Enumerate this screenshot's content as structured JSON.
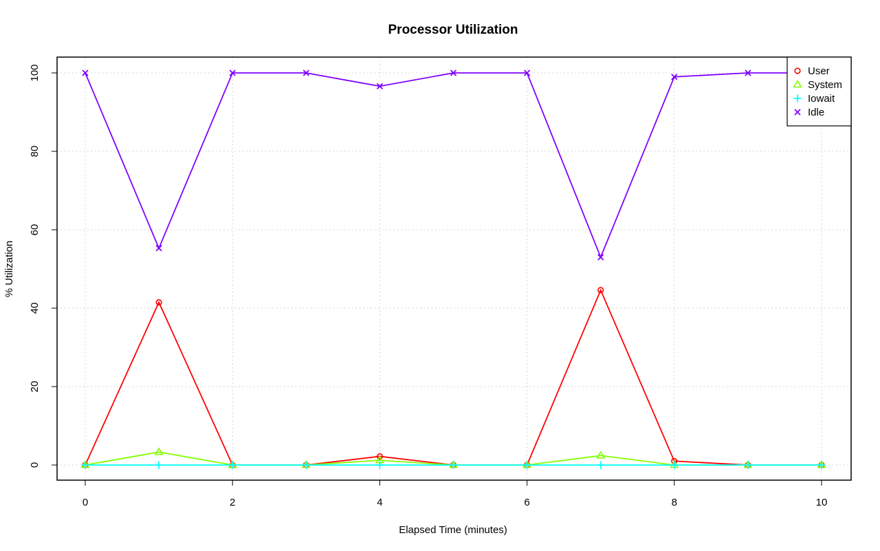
{
  "chart_data": {
    "type": "line",
    "title": "Processor Utilization",
    "xlabel": "Elapsed Time (minutes)",
    "ylabel": "% Utilization",
    "xlim": [
      0,
      10
    ],
    "ylim": [
      0,
      100
    ],
    "x_ticks": [
      0,
      2,
      4,
      6,
      8,
      10
    ],
    "y_ticks": [
      0,
      20,
      40,
      60,
      80,
      100
    ],
    "grid": true,
    "legend_position": "top-right",
    "x": [
      0,
      1,
      2,
      3,
      4,
      5,
      6,
      7,
      8,
      9,
      10
    ],
    "series": [
      {
        "name": "User",
        "color": "#ff0000",
        "marker": "circle",
        "values": [
          0,
          41.5,
          0,
          0,
          2.2,
          0,
          0,
          44.6,
          1.0,
          0,
          0
        ]
      },
      {
        "name": "System",
        "color": "#80ff00",
        "marker": "triangle",
        "values": [
          0,
          3.3,
          0,
          0,
          1.2,
          0,
          0,
          2.4,
          0,
          0,
          0
        ]
      },
      {
        "name": "Iowait",
        "color": "#00ffff",
        "marker": "plus",
        "values": [
          0,
          0,
          0,
          0,
          0,
          0,
          0,
          0,
          0,
          0,
          0
        ]
      },
      {
        "name": "Idle",
        "color": "#8000ff",
        "marker": "cross",
        "values": [
          100,
          55.3,
          100,
          100,
          96.6,
          100,
          100,
          53.0,
          99.0,
          100,
          100
        ]
      }
    ]
  }
}
